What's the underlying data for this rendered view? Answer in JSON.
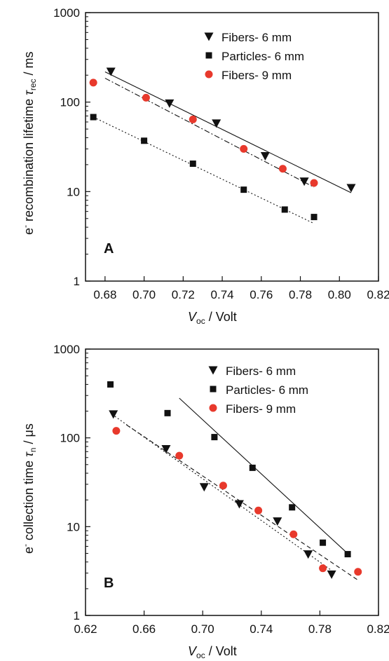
{
  "colors": {
    "axis": "#111111",
    "fibers9": "#e8392c",
    "marker": "#111111"
  },
  "chart_data": [
    {
      "type": "scatter",
      "panel_label": "A",
      "xlabel_main": "V",
      "xlabel_sub": "oc",
      "xlabel_rest": " / Volt",
      "ylabel_pre": "e",
      "ylabel_sup": "-",
      "ylabel_mid": " recombination lifetime ",
      "ylabel_sym": "τ",
      "ylabel_sub": "rec",
      "ylabel_rest": " / ms",
      "xlim": [
        0.67,
        0.82
      ],
      "ylim": [
        1,
        1000
      ],
      "yscale": "log",
      "xticks": [
        "0.68",
        "0.70",
        "0.72",
        "0.74",
        "0.76",
        "0.78",
        "0.80",
        "0.82"
      ],
      "xtick_values": [
        0.68,
        0.7,
        0.72,
        0.74,
        0.76,
        0.78,
        0.8,
        0.82
      ],
      "yticks": [
        "1",
        "10",
        "100",
        "1000"
      ],
      "ytick_values": [
        1,
        10,
        100,
        1000
      ],
      "legend_position": "top-right",
      "series": [
        {
          "name": "Fibers- 6 mm",
          "marker": "triangle-down",
          "color": "#111111",
          "x": [
            0.683,
            0.713,
            0.737,
            0.762,
            0.782,
            0.806
          ],
          "y": [
            220,
            97,
            58,
            25,
            13,
            11
          ],
          "fit": {
            "x": [
              0.68,
              0.806
            ],
            "y": [
              218,
              9.7
            ],
            "style": "solid"
          }
        },
        {
          "name": "Particles- 6 mm",
          "marker": "square",
          "color": "#111111",
          "x": [
            0.674,
            0.7,
            0.725,
            0.751,
            0.772,
            0.787
          ],
          "y": [
            68,
            37,
            20.5,
            10.5,
            6.3,
            5.2
          ],
          "fit": {
            "x": [
              0.674,
              0.787
            ],
            "y": [
              68,
              4.4
            ],
            "style": "dotted"
          }
        },
        {
          "name": "Fibers- 9 mm",
          "marker": "circle",
          "color": "#e8392c",
          "x": [
            0.674,
            0.701,
            0.725,
            0.751,
            0.771,
            0.787
          ],
          "y": [
            165,
            112,
            64,
            30,
            18,
            12.5
          ],
          "fit": {
            "x": [
              0.68,
              0.787
            ],
            "y": [
              185,
              11.2
            ],
            "style": "dashdot"
          }
        }
      ]
    },
    {
      "type": "scatter",
      "panel_label": "B",
      "xlabel_main": "V",
      "xlabel_sub": "oc",
      "xlabel_rest": " / Volt",
      "ylabel_pre": "e",
      "ylabel_sup": "-",
      "ylabel_mid": " collection time ",
      "ylabel_sym": "τ",
      "ylabel_sub": "n",
      "ylabel_rest": " / μs",
      "xlim": [
        0.62,
        0.82
      ],
      "ylim": [
        1,
        1000
      ],
      "yscale": "log",
      "xticks": [
        "0.62",
        "0.66",
        "0.70",
        "0.74",
        "0.78",
        "0.82"
      ],
      "xtick_values": [
        0.62,
        0.66,
        0.7,
        0.74,
        0.78,
        0.82
      ],
      "yticks": [
        "1",
        "10",
        "100",
        "1000"
      ],
      "ytick_values": [
        1,
        10,
        100,
        1000
      ],
      "legend_position": "top-right",
      "series": [
        {
          "name": "Fibers- 6 mm",
          "marker": "triangle-down",
          "color": "#111111",
          "x": [
            0.639,
            0.675,
            0.701,
            0.725,
            0.751,
            0.772,
            0.788
          ],
          "y": [
            185,
            75,
            28,
            18,
            11.5,
            4.9,
            2.9
          ],
          "fit": {
            "x": [
              0.64,
              0.787
            ],
            "y": [
              175,
              3.3
            ],
            "style": "dotted"
          }
        },
        {
          "name": "Particles- 6 mm",
          "marker": "square",
          "color": "#111111",
          "x": [
            0.637,
            0.676,
            0.708,
            0.734,
            0.761,
            0.782,
            0.799
          ],
          "y": [
            400,
            190,
            102,
            46,
            16.5,
            6.6,
            4.9
          ],
          "fit": {
            "x": [
              0.684,
              0.8
            ],
            "y": [
              280,
              4.8
            ],
            "style": "solid"
          }
        },
        {
          "name": "Fibers- 9 mm",
          "marker": "circle",
          "color": "#e8392c",
          "x": [
            0.641,
            0.684,
            0.714,
            0.738,
            0.762,
            0.782,
            0.806
          ],
          "y": [
            120,
            63,
            29,
            15.2,
            8.2,
            3.4,
            3.1
          ],
          "fit": {
            "x": [
              0.648,
              0.806
            ],
            "y": [
              140,
              2.5
            ],
            "style": "dashed"
          }
        }
      ]
    }
  ]
}
